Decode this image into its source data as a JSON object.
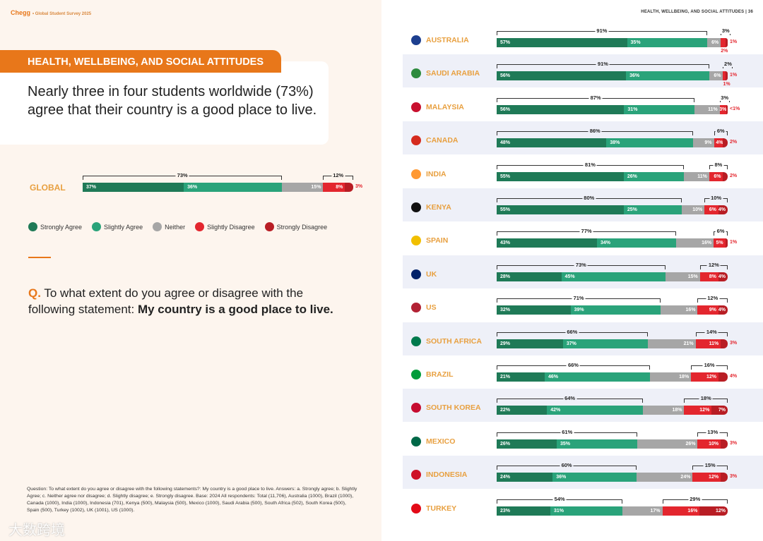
{
  "left_page": {
    "brand": "Chegg",
    "brand_sub": "• Global Student Survey 2025",
    "section": "HEALTH, WELLBEING, AND SOCIAL ATTITUDES",
    "headline": "Nearly three in four students worldwide (73%) agree that their country is a good place to live.",
    "question_prefix": "Q.",
    "question_text": "To what extent do you agree or disagree with the following statement: ",
    "question_bold": "My country is a good place to live.",
    "footnote": "Question:  To what extent do you agree or disagree with the following statements?: My country is a good place to live. Answers: a. Strongly agree; b. Slightly Agree; c. Neither agree nor disagree; d. Slightly disagree; e. Strongly disagree. Base: 2024 All respondents: Total (11,706), Australia (1000), Brazil (1000), Canada (1000), India (1000), Indonesia (701), Kenya (500), Malaysia (500), Mexico (1000), Saudi Arabia (500), South Africa (502), South Korea (500), Spain (500), Turkey (1002), UK (1001), US (1000).",
    "watermark": "大数跨境"
  },
  "right_page": {
    "header": "HEALTH, WELLBEING, AND SOCIAL ATTITUDES  |  36"
  },
  "colors": {
    "strongly_agree": "#1f7a57",
    "slightly_agree": "#2aa37a",
    "neither": "#a6a6a6",
    "slightly_disagree": "#e3262e",
    "strongly_disagree": "#b81d24",
    "accent": "#e8771a"
  },
  "chart_data": {
    "type": "bar",
    "stacked": true,
    "unit": "%",
    "legend": [
      "Strongly Agree",
      "Slightly Agree",
      "Neither",
      "Slightly Disagree",
      "Strongly Disagree"
    ],
    "global": {
      "name": "GLOBAL",
      "values": [
        37,
        36,
        15,
        8,
        3
      ],
      "labels": [
        "37%",
        "36%",
        "15%",
        "8%",
        "3%"
      ],
      "agree": "73%",
      "disagree": "12%"
    },
    "countries": [
      {
        "name": "AUSTRALIA",
        "values": [
          57,
          35,
          6,
          2,
          1
        ],
        "labels": [
          "57%",
          "35%",
          "6%",
          "2%",
          "1%"
        ],
        "agree": "91%",
        "disagree": "3%"
      },
      {
        "name": "SAUDI ARABIA",
        "values": [
          56,
          36,
          6,
          1,
          1
        ],
        "labels": [
          "56%",
          "36%",
          "6%",
          "1%",
          "1%"
        ],
        "agree": "91%",
        "disagree": "2%"
      },
      {
        "name": "MALAYSIA",
        "values": [
          56,
          31,
          11,
          3,
          0.5
        ],
        "labels": [
          "56%",
          "31%",
          "11%",
          "3%",
          "<1%"
        ],
        "agree": "87%",
        "disagree": "3%"
      },
      {
        "name": "CANADA",
        "values": [
          48,
          38,
          9,
          4,
          2
        ],
        "labels": [
          "48%",
          "38%",
          "9%",
          "4%",
          "2%"
        ],
        "agree": "86%",
        "disagree": "6%"
      },
      {
        "name": "INDIA",
        "values": [
          55,
          26,
          11,
          6,
          2
        ],
        "labels": [
          "55%",
          "26%",
          "11%",
          "6%",
          "2%"
        ],
        "agree": "81%",
        "disagree": "8%"
      },
      {
        "name": "KENYA",
        "values": [
          55,
          25,
          10,
          6,
          4
        ],
        "labels": [
          "55%",
          "25%",
          "10%",
          "6%",
          "4%"
        ],
        "agree": "80%",
        "disagree": "10%"
      },
      {
        "name": "SPAIN",
        "values": [
          43,
          34,
          16,
          5,
          1
        ],
        "labels": [
          "43%",
          "34%",
          "16%",
          "5%",
          "1%"
        ],
        "agree": "77%",
        "disagree": "6%"
      },
      {
        "name": "UK",
        "values": [
          28,
          45,
          15,
          8,
          4
        ],
        "labels": [
          "28%",
          "45%",
          "15%",
          "8%",
          "4%"
        ],
        "agree": "73%",
        "disagree": "12%"
      },
      {
        "name": "US",
        "values": [
          32,
          39,
          16,
          9,
          4
        ],
        "labels": [
          "32%",
          "39%",
          "16%",
          "9%",
          "4%"
        ],
        "agree": "71%",
        "disagree": "12%"
      },
      {
        "name": "SOUTH AFRICA",
        "values": [
          29,
          37,
          21,
          11,
          3
        ],
        "labels": [
          "29%",
          "37%",
          "21%",
          "11%",
          "3%"
        ],
        "agree": "66%",
        "disagree": "14%"
      },
      {
        "name": "BRAZIL",
        "values": [
          21,
          46,
          18,
          12,
          4
        ],
        "labels": [
          "21%",
          "46%",
          "18%",
          "12%",
          "4%"
        ],
        "agree": "66%",
        "disagree": "16%"
      },
      {
        "name": "SOUTH KOREA",
        "values": [
          22,
          42,
          18,
          12,
          7
        ],
        "labels": [
          "22%",
          "42%",
          "18%",
          "12%",
          "7%"
        ],
        "agree": "64%",
        "disagree": "18%"
      },
      {
        "name": "MEXICO",
        "values": [
          26,
          35,
          26,
          10,
          3
        ],
        "labels": [
          "26%",
          "35%",
          "26%",
          "10%",
          "3%"
        ],
        "agree": "61%",
        "disagree": "13%"
      },
      {
        "name": "INDONESIA",
        "values": [
          24,
          36,
          24,
          12,
          3
        ],
        "labels": [
          "24%",
          "36%",
          "24%",
          "12%",
          "3%"
        ],
        "agree": "60%",
        "disagree": "15%"
      },
      {
        "name": "TURKEY",
        "values": [
          23,
          31,
          17,
          16,
          12
        ],
        "labels": [
          "23%",
          "31%",
          "17%",
          "16%",
          "12%"
        ],
        "agree": "54%",
        "disagree": "29%"
      }
    ]
  }
}
